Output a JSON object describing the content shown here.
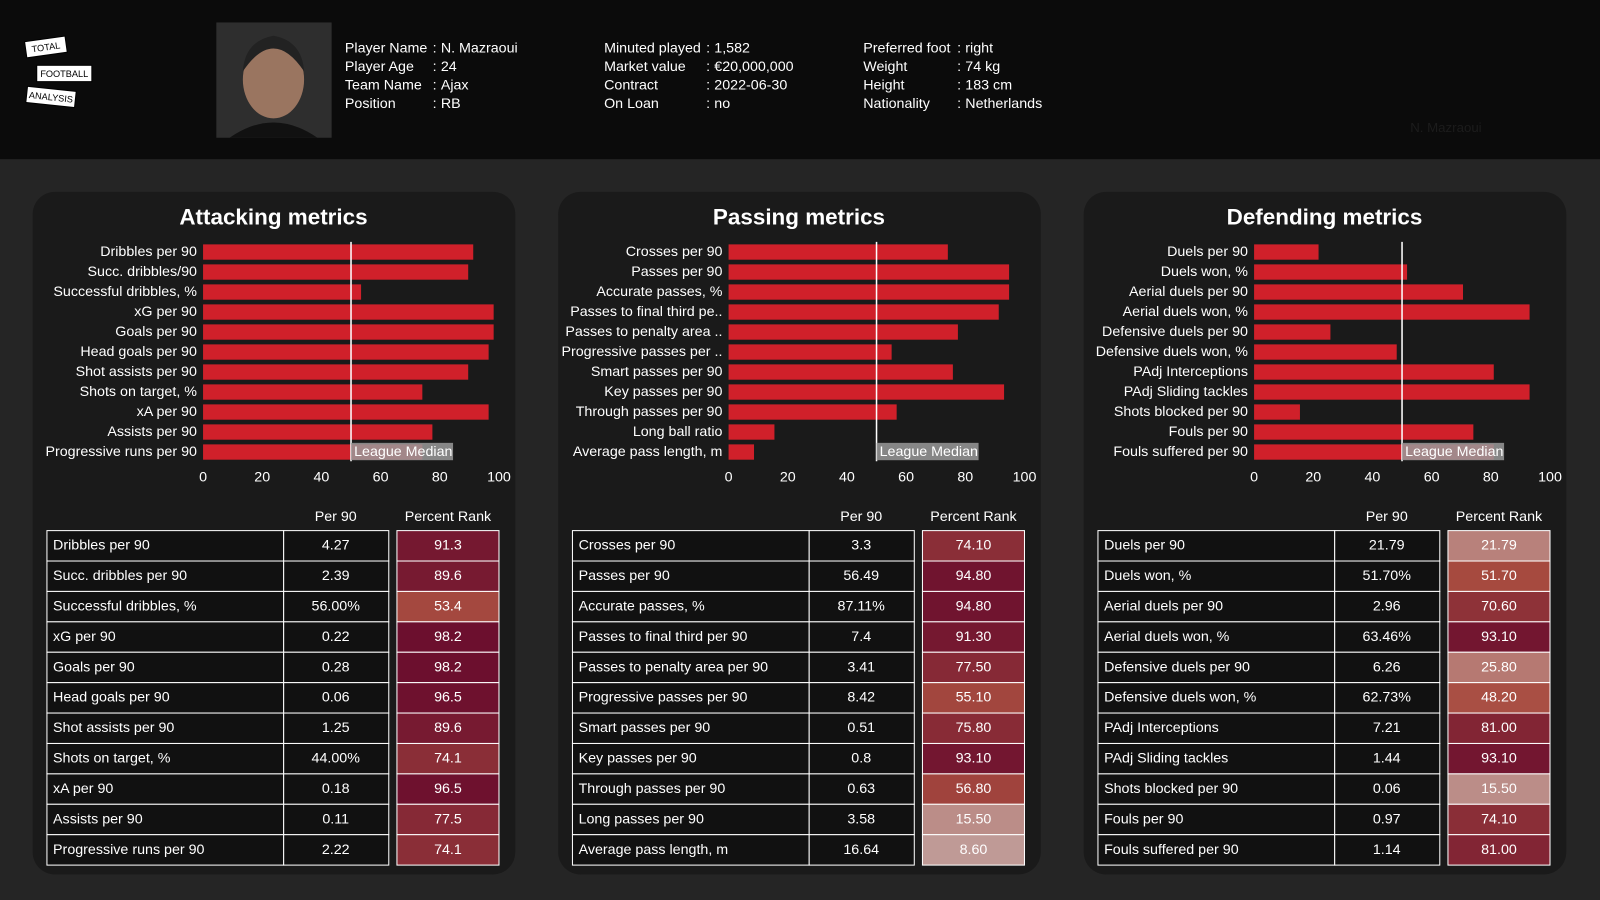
{
  "header": {
    "logo": [
      "TOTAL",
      "FOOTBALL",
      "ANALYSIS"
    ],
    "separator": ":",
    "watermark": "N. Mazraoui",
    "fields": [
      [
        [
          "Player Name",
          "N. Mazraoui"
        ],
        [
          "Player Age",
          "24"
        ],
        [
          "Team Name",
          "Ajax"
        ],
        [
          "Position",
          "RB"
        ]
      ],
      [
        [
          "Minuted played",
          "1,582"
        ],
        [
          "Market value",
          "€20,000,000"
        ],
        [
          "Contract",
          "2022-06-30"
        ],
        [
          "On Loan",
          "no"
        ]
      ],
      [
        [
          "Preferred foot",
          "right"
        ],
        [
          "Weight",
          "74 kg"
        ],
        [
          "Height",
          "183 cm"
        ],
        [
          "Nationality",
          "Netherlands"
        ]
      ]
    ]
  },
  "chart_data": [
    {
      "type": "bar",
      "orientation": "horizontal",
      "title": "Attacking metrics",
      "color": "#d0202a",
      "xlim": [
        0,
        100
      ],
      "xticks": [
        0,
        20,
        40,
        60,
        80,
        100
      ],
      "median": 50,
      "median_label": "League Median",
      "categories": [
        "Dribbles per 90",
        "Succ. dribbles/90",
        "Successful dribbles, %",
        "xG per 90",
        "Goals per 90",
        "Head goals per 90",
        "Shot assists per 90",
        "Shots on target, %",
        "xA per 90",
        "Assists per 90",
        "Progressive runs per 90"
      ],
      "values": [
        91.3,
        89.6,
        53.4,
        98.2,
        98.2,
        96.5,
        89.6,
        74.1,
        96.5,
        77.5,
        74.1
      ]
    },
    {
      "type": "bar",
      "orientation": "horizontal",
      "title": "Passing metrics",
      "color": "#d0202a",
      "xlim": [
        0,
        100
      ],
      "xticks": [
        0,
        20,
        40,
        60,
        80,
        100
      ],
      "median": 50,
      "median_label": "League Median",
      "categories": [
        "Crosses per 90",
        "Passes per 90",
        "Accurate passes, %",
        "Passes to final third pe..",
        "Passes to penalty area ..",
        "Progressive passes per ..",
        "Smart passes per 90",
        "Key passes per 90",
        "Through passes per 90",
        "Long ball ratio",
        "Average pass length, m"
      ],
      "values": [
        74.1,
        94.8,
        94.8,
        91.3,
        77.5,
        55.1,
        75.8,
        93.1,
        56.8,
        15.5,
        8.6
      ],
      "value_labels": [
        "74.10",
        "94.80",
        "94.80",
        "91.30",
        "77.50",
        "55.10",
        "75.80",
        "93.10",
        "56.80",
        "15.50",
        "8.60"
      ]
    },
    {
      "type": "bar",
      "orientation": "horizontal",
      "title": "Defending metrics",
      "color": "#d0202a",
      "xlim": [
        0,
        100
      ],
      "xticks": [
        0,
        20,
        40,
        60,
        80,
        100
      ],
      "median": 50,
      "median_label": "League Median",
      "categories": [
        "Duels per 90",
        "Duels won, %",
        "Aerial duels per 90",
        "Aerial duels won, %",
        "Defensive duels per 90",
        "Defensive duels won, %",
        "PAdj Interceptions",
        "PAdj Sliding tackles",
        "Shots blocked per 90",
        "Fouls per 90",
        "Fouls suffered per 90"
      ],
      "values": [
        21.79,
        51.7,
        70.6,
        93.1,
        25.8,
        48.2,
        81,
        93.1,
        15.5,
        74.1,
        81
      ],
      "value_labels": [
        "21.79",
        "51.70",
        "70.60",
        "93.10",
        "25.80",
        "48.20",
        "81.00",
        "93.10",
        "15.50",
        "74.10",
        "81.00"
      ]
    }
  ],
  "tables": [
    {
      "columns": [
        "Per 90",
        "Percent Rank"
      ],
      "rows": [
        [
          "Dribbles per 90",
          "4.27"
        ],
        [
          "Succ. dribbles per 90",
          "2.39"
        ],
        [
          "Successful dribbles, %",
          "56.00%"
        ],
        [
          "xG per 90",
          "0.22"
        ],
        [
          "Goals per 90",
          "0.28"
        ],
        [
          "Head goals per 90",
          "0.06"
        ],
        [
          "Shot assists per 90",
          "1.25"
        ],
        [
          "Shots on target, %",
          "44.00%"
        ],
        [
          "xA per 90",
          "0.18"
        ],
        [
          "Assists per 90",
          "0.11"
        ],
        [
          "Progressive runs per 90",
          "2.22"
        ]
      ]
    },
    {
      "columns": [
        "Per 90",
        "Percent Rank"
      ],
      "rows": [
        [
          "Crosses per 90",
          "3.3"
        ],
        [
          "Passes per 90",
          "56.49"
        ],
        [
          "Accurate passes, %",
          "87.11%"
        ],
        [
          "Passes to final third per 90",
          "7.4"
        ],
        [
          "Passes to penalty area per 90",
          "3.41"
        ],
        [
          "Progressive passes per 90",
          "8.42"
        ],
        [
          "Smart passes per 90",
          "0.51"
        ],
        [
          "Key passes per 90",
          "0.8"
        ],
        [
          "Through passes per 90",
          "0.63"
        ],
        [
          "Long passes per 90",
          "3.58"
        ],
        [
          "Average pass length, m",
          "16.64"
        ]
      ]
    },
    {
      "columns": [
        "Per 90",
        "Percent Rank"
      ],
      "rows": [
        [
          "Duels per 90",
          "21.79"
        ],
        [
          "Duels won, %",
          "51.70%"
        ],
        [
          "Aerial duels per 90",
          "2.96"
        ],
        [
          "Aerial duels won, %",
          "63.46%"
        ],
        [
          "Defensive duels per 90",
          "6.26"
        ],
        [
          "Defensive duels won, %",
          "62.73%"
        ],
        [
          "PAdj Interceptions",
          "7.21"
        ],
        [
          "PAdj Sliding tackles",
          "1.44"
        ],
        [
          "Shots blocked per 90",
          "0.06"
        ],
        [
          "Fouls per 90",
          "0.97"
        ],
        [
          "Fouls suffered per 90",
          "1.14"
        ]
      ]
    }
  ]
}
